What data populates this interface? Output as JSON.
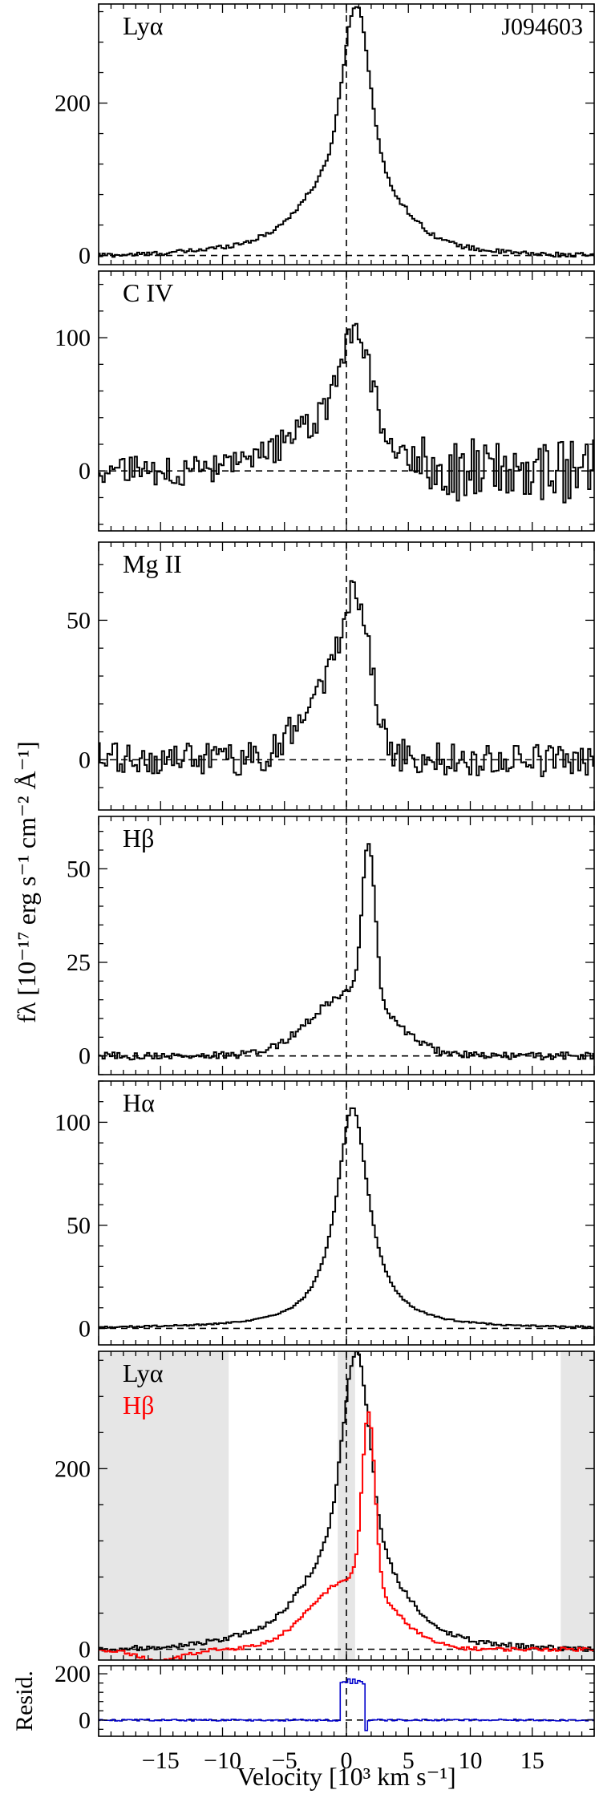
{
  "chart_data": {
    "type": "line",
    "object": "J094603",
    "xlabel": "Velocity [10³ km s⁻¹]",
    "ylabel": "fλ [10⁻¹⁷ erg s⁻¹ cm⁻² Å⁻¹]",
    "xlim": [
      -20,
      20
    ],
    "xticks": [
      -15,
      -10,
      -5,
      0,
      5,
      10,
      15
    ],
    "xtick_labels": [
      "−15",
      "−10",
      "−5",
      "0",
      "5",
      "10",
      "15"
    ],
    "colors": {
      "black": "#000000",
      "red": "#ff0000",
      "blue": "#0000cc",
      "shade": "#e6e6e6"
    },
    "panels": [
      {
        "id": "lya",
        "label": "Lyα",
        "ylim": [
          -12,
          330
        ],
        "yticks": [
          0,
          200
        ],
        "ytick_labels": [
          "0",
          "200"
        ],
        "annotation": "J094603",
        "series": [
          {
            "name": "Lyα",
            "color": "#000000",
            "profile": {
              "base": 0,
              "components": [
                {
                  "center": 0.8,
                  "amp": 195,
                  "fwhm": 2.4
                },
                {
                  "center": 0.5,
                  "amp": 105,
                  "fwhm": 7.2
                },
                {
                  "center": -0.4,
                  "amp": 30,
                  "fwhm": 16
                }
              ],
              "noise": 3,
              "step": 0.2
            }
          }
        ]
      },
      {
        "id": "civ",
        "label": "C IV",
        "ylim": [
          -45,
          150
        ],
        "yticks": [
          0,
          100
        ],
        "ytick_labels": [
          "0",
          "100"
        ],
        "annotation": "",
        "series": [
          {
            "name": "C IV",
            "color": "#000000",
            "profile": {
              "base": 0,
              "components": [
                {
                  "center": 0.8,
                  "amp": 70,
                  "fwhm": 2.6
                },
                {
                  "center": -0.8,
                  "amp": 42,
                  "fwhm": 8.5
                }
              ],
              "noise": 11,
              "noise_right": 24,
              "step": 0.2
            }
          }
        ]
      },
      {
        "id": "mgii",
        "label": "Mg II",
        "ylim": [
          -18,
          78
        ],
        "yticks": [
          0,
          50
        ],
        "ytick_labels": [
          "0",
          "50"
        ],
        "annotation": "",
        "series": [
          {
            "name": "Mg II",
            "color": "#000000",
            "profile": {
              "base": 0,
              "components": [
                {
                  "center": 0.9,
                  "amp": 40,
                  "fwhm": 2.3
                },
                {
                  "center": -1.1,
                  "amp": 30,
                  "fwhm": 5.5
                }
              ],
              "noise": 6,
              "step": 0.2
            }
          }
        ]
      },
      {
        "id": "hb",
        "label": "Hβ",
        "ylim": [
          -5,
          64
        ],
        "yticks": [
          0,
          25,
          50
        ],
        "ytick_labels": [
          "0",
          "25",
          "50"
        ],
        "annotation": "",
        "series": [
          {
            "name": "Hβ",
            "color": "#000000",
            "profile": {
              "base": 0,
              "components": [
                {
                  "center": 1.8,
                  "amp": 42,
                  "fwhm": 1.2
                },
                {
                  "center": 0.4,
                  "amp": 17,
                  "fwhm": 7.5
                }
              ],
              "noise": 1,
              "step": 0.2
            }
          }
        ]
      },
      {
        "id": "ha",
        "label": "Hα",
        "ylim": [
          -8,
          120
        ],
        "yticks": [
          0,
          50,
          100
        ],
        "ytick_labels": [
          "0",
          "50",
          "100"
        ],
        "annotation": "",
        "series": [
          {
            "name": "Hα",
            "color": "#000000",
            "profile": {
              "base": 0,
              "components": [
                {
                  "center": 0.5,
                  "amp": 107,
                  "fwhm": 3.2,
                  "shape": "lorentz"
                }
              ],
              "noise": 0.4,
              "step": 0.2
            }
          }
        ]
      },
      {
        "id": "compare",
        "label": "Lyα",
        "label2": "Hβ",
        "ylim": [
          -12,
          330
        ],
        "yticks": [
          0,
          200
        ],
        "ytick_labels": [
          "0",
          "200"
        ],
        "annotation": "",
        "shaded_regions": [
          [
            -20,
            -9.5
          ],
          [
            -0.7,
            0.7
          ],
          [
            17.3,
            20
          ]
        ],
        "series": [
          {
            "name": "Lyα",
            "color": "#000000",
            "profile": {
              "base": 0,
              "components": [
                {
                  "center": 0.8,
                  "amp": 195,
                  "fwhm": 2.4
                },
                {
                  "center": 0.5,
                  "amp": 105,
                  "fwhm": 7.2
                },
                {
                  "center": -0.4,
                  "amp": 30,
                  "fwhm": 16
                }
              ],
              "noise": 3,
              "step": 0.2
            }
          },
          {
            "name": "Hβ",
            "color": "#ff0000",
            "profile": {
              "base": 0,
              "components": [
                {
                  "center": 1.8,
                  "amp": 192,
                  "fwhm": 1.2
                },
                {
                  "center": 0.4,
                  "amp": 78,
                  "fwhm": 7.5
                }
              ],
              "dip": {
                "center": -15,
                "amp": -13,
                "width": 1.8
              },
              "noise": 2,
              "step": 0.2
            }
          }
        ]
      },
      {
        "id": "resid",
        "label": "Resid.",
        "ylim": [
          -70,
          235
        ],
        "yticks": [
          0,
          200
        ],
        "ytick_labels": [
          "0",
          "200"
        ],
        "annotation": "",
        "series": [
          {
            "name": "Residual",
            "color": "#0000cc",
            "profile": {
              "base": 0,
              "components": [],
              "plateau": {
                "from": -0.6,
                "to": 1.4,
                "level": 168,
                "noise": 12
              },
              "spike": {
                "x": 1.6,
                "value": -45
              },
              "noise": 4,
              "step": 0.2
            }
          }
        ]
      }
    ]
  }
}
